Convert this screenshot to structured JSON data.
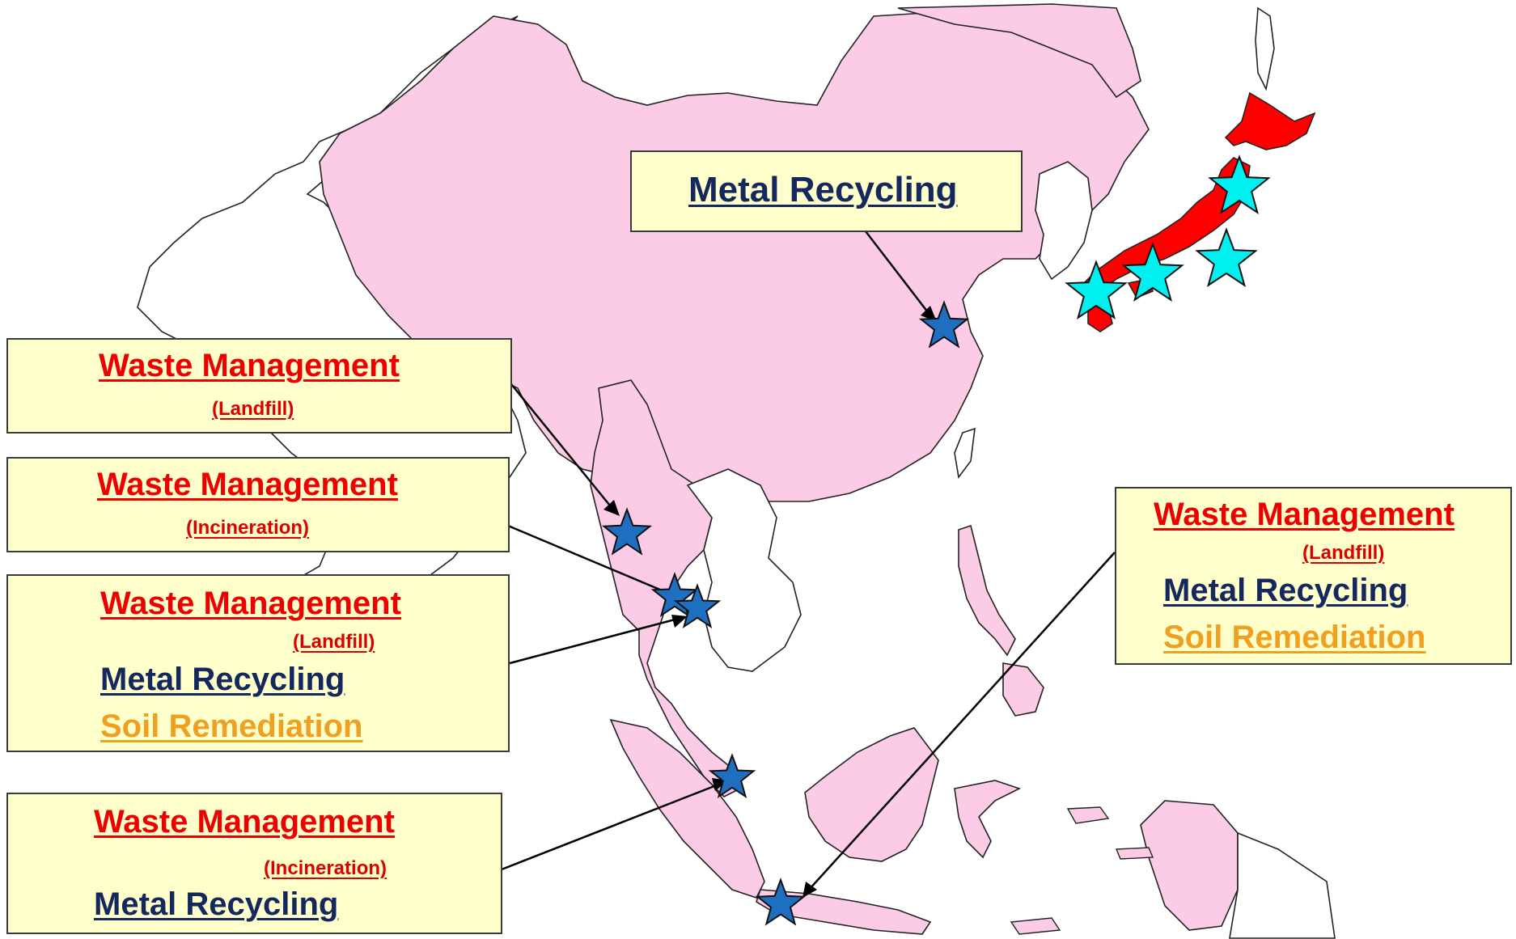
{
  "map": {
    "colors": {
      "ocean": "#ffffff",
      "highlighted_land": "#fccce6",
      "japan": "#ff0000",
      "other_land": "#ffffff",
      "border": "#222222",
      "star_site": "#1f6fc1",
      "star_japan": "#00f0f0",
      "callout_bg": "#ffffcc"
    },
    "icons": {
      "site": "star-icon",
      "japan_site": "star-icon"
    }
  },
  "callouts": {
    "china": {
      "metal": "Metal Recycling"
    },
    "myanmar": {
      "waste": "Waste Management",
      "sub": "(Landfill)"
    },
    "thailand_1": {
      "waste": "Waste Management",
      "sub": "(Incineration)"
    },
    "thailand_2": {
      "waste": "Waste Management",
      "sub": "(Landfill)",
      "metal": "Metal Recycling",
      "soil": "Soil Remediation"
    },
    "malaysia": {
      "waste": "Waste Management",
      "sub": "(Incineration)",
      "metal": "Metal Recycling"
    },
    "indonesia": {
      "waste": "Waste Management",
      "sub": "(Landfill)",
      "metal": "Metal Recycling",
      "soil": "Soil Remediation"
    }
  }
}
